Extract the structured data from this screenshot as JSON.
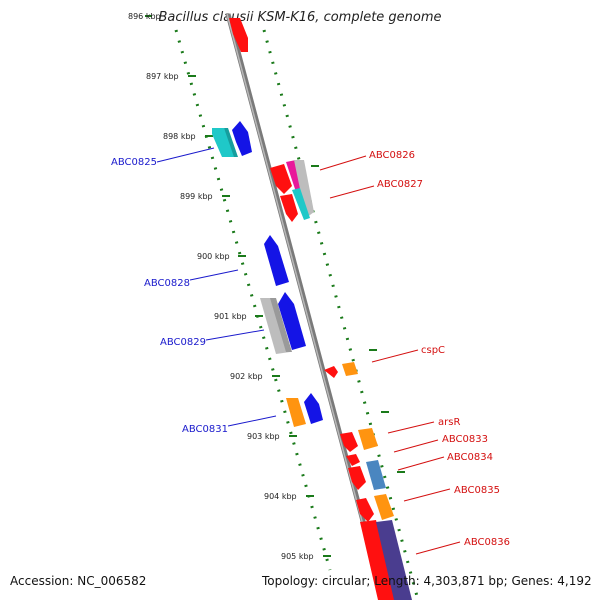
{
  "title": "Bacillus clausii KSM-K16, complete genome",
  "accession": "Accession: NC_006582",
  "topology": "Topology: circular; Length: 4,303,871 bp; Genes: 4,192",
  "kbp_ticks": [
    "896 kbp",
    "897 kbp",
    "898 kbp",
    "899 kbp",
    "900 kbp",
    "901 kbp",
    "902 kbp",
    "903 kbp",
    "904 kbp",
    "905 kbp"
  ],
  "left_labels": [
    "ABC0825",
    "ABC0828",
    "ABC0829",
    "ABC0831"
  ],
  "right_labels": [
    "ABC0826",
    "ABC0827",
    "cspC",
    "arsR",
    "ABC0833",
    "ABC0834",
    "ABC0835",
    "ABC0836"
  ],
  "colors": {
    "backbone": "#8a8a8a",
    "tick_green": "#1a7a1a",
    "left_label": "#1a1acc",
    "right_label": "#d41010",
    "red": "#ff1010",
    "blue": "#1414e6",
    "cyan": "#1fc8c8",
    "gray": "#bdbdbd",
    "orange": "#ff9410",
    "magenta": "#e8189a",
    "steel": "#4a86c0",
    "purple": "#4a3d8f"
  }
}
